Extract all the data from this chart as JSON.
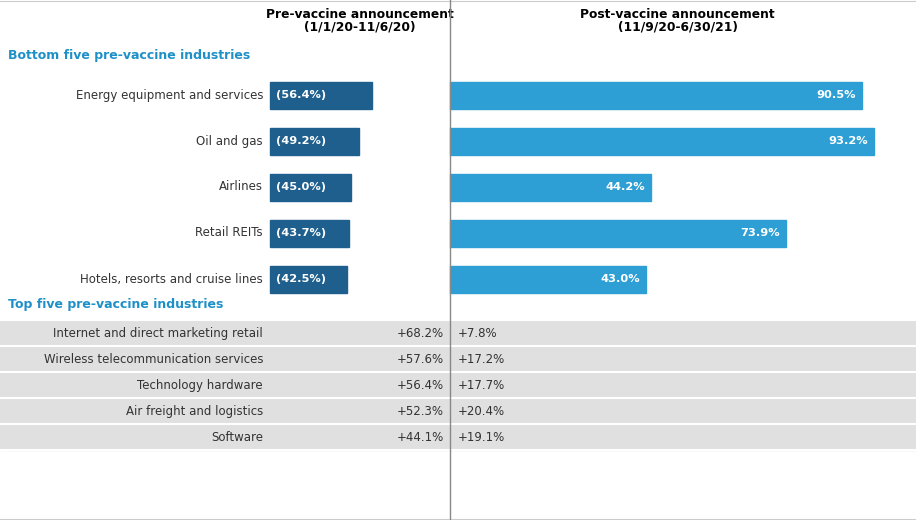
{
  "header_col1_line1": "Pre-vaccine announcement",
  "header_col1_line2": "(1/1/20-11/6/20)",
  "header_col2_line1": "Post-vaccine announcement",
  "header_col2_line2": "(11/9/20-6/30/21)",
  "section1_label": "Bottom five pre-vaccine industries",
  "section2_label": "Top five pre-vaccine industries",
  "bar_rows": [
    {
      "name": "Energy equipment and services",
      "pre": 56.4,
      "post": 90.5,
      "pre_label": "(56.4%)",
      "post_label": "90.5%"
    },
    {
      "name": "Oil and gas",
      "pre": 49.2,
      "post": 93.2,
      "pre_label": "(49.2%)",
      "post_label": "93.2%"
    },
    {
      "name": "Airlines",
      "pre": 45.0,
      "post": 44.2,
      "pre_label": "(45.0%)",
      "post_label": "44.2%"
    },
    {
      "name": "Retail REITs",
      "pre": 43.7,
      "post": 73.9,
      "pre_label": "(43.7%)",
      "post_label": "73.9%"
    },
    {
      "name": "Hotels, resorts and cruise lines",
      "pre": 42.5,
      "post": 43.0,
      "pre_label": "(42.5%)",
      "post_label": "43.0%"
    }
  ],
  "top_five": [
    {
      "name": "Internet and direct marketing retail",
      "pre": "+68.2%",
      "post": "+7.8%"
    },
    {
      "name": "Wireless telecommunication services",
      "pre": "+57.6%",
      "post": "+17.2%"
    },
    {
      "name": "Technology hardware",
      "pre": "+56.4%",
      "post": "+17.7%"
    },
    {
      "name": "Air freight and logistics",
      "pre": "+52.3%",
      "post": "+20.4%"
    },
    {
      "name": "Software",
      "pre": "+44.1%",
      "post": "+19.1%"
    }
  ],
  "bar_color_pre": "#1e5f8e",
  "bar_color_post": "#2e9fd4",
  "section_label_color": "#1e90c8",
  "bg_color": "#ffffff",
  "table_bg_color": "#e0e0e0",
  "divider_color": "#888888",
  "text_color": "#333333"
}
